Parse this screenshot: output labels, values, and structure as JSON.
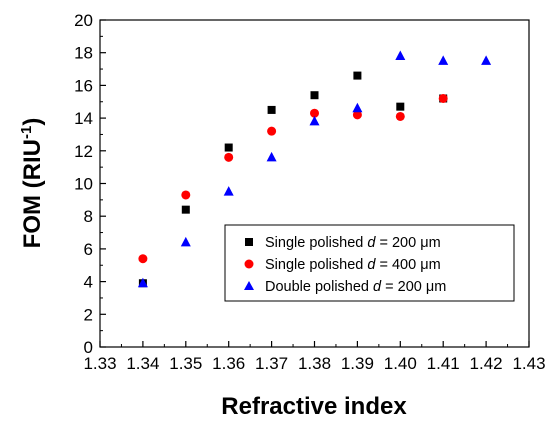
{
  "chart_data": {
    "type": "scatter",
    "xlabel": "Refractive index",
    "ylabel_main": "FOM (RIU",
    "ylabel_sup": "-1",
    "ylabel_close": ")",
    "xlim": [
      1.33,
      1.43
    ],
    "ylim": [
      0,
      20
    ],
    "xticks": [
      1.33,
      1.34,
      1.35,
      1.36,
      1.37,
      1.38,
      1.39,
      1.4,
      1.41,
      1.42,
      1.43
    ],
    "xtick_labels": [
      "1.33",
      "1.34",
      "1.35",
      "1.36",
      "1.37",
      "1.38",
      "1.39",
      "1.40",
      "1.41",
      "1.42",
      "1.43"
    ],
    "yticks": [
      0,
      2,
      4,
      6,
      8,
      10,
      12,
      14,
      16,
      18,
      20
    ],
    "ytick_labels": [
      "0",
      "2",
      "4",
      "6",
      "8",
      "10",
      "12",
      "14",
      "16",
      "18",
      "20"
    ],
    "grid": false,
    "legend_position": "bottom-right",
    "series": [
      {
        "name_prefix": "Single polished ",
        "name_var": "d",
        "name_suffix": " = 200 μm",
        "marker": "square",
        "color": "#000000",
        "x": [
          1.34,
          1.35,
          1.36,
          1.37,
          1.38,
          1.39,
          1.4,
          1.41
        ],
        "y": [
          3.9,
          8.4,
          12.2,
          14.5,
          15.4,
          16.6,
          14.7,
          15.2
        ]
      },
      {
        "name_prefix": "Single polished ",
        "name_var": "d",
        "name_suffix": " = 400 μm",
        "marker": "circle",
        "color": "#ff0000",
        "x": [
          1.34,
          1.35,
          1.36,
          1.37,
          1.38,
          1.39,
          1.4,
          1.41
        ],
        "y": [
          5.4,
          9.3,
          11.6,
          13.2,
          14.3,
          14.2,
          14.1,
          15.2
        ]
      },
      {
        "name_prefix": "Double polished ",
        "name_var": "d",
        "name_suffix": " = 200 μm",
        "marker": "triangle",
        "color": "#0000ff",
        "x": [
          1.34,
          1.35,
          1.36,
          1.37,
          1.38,
          1.39,
          1.4,
          1.41,
          1.42
        ],
        "y": [
          3.9,
          6.4,
          9.5,
          11.6,
          13.8,
          14.6,
          17.8,
          17.5,
          17.5
        ]
      }
    ]
  }
}
